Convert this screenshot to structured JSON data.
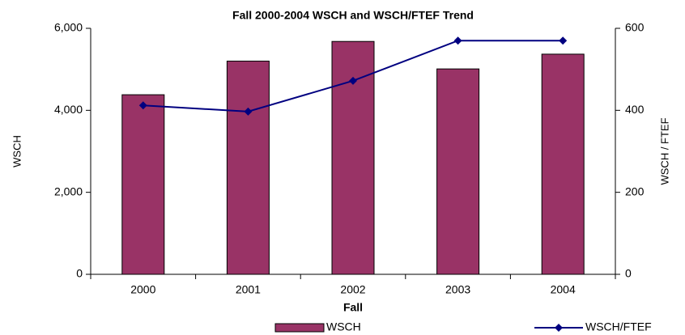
{
  "chart_data": {
    "type": "bar_line",
    "title": "Fall 2000-2004 WSCH and WSCH/FTEF Trend",
    "xlabel": "Fall",
    "ylabel": "WSCH",
    "y2label": "WSCH / FTEF",
    "categories": [
      "2000",
      "2001",
      "2002",
      "2003",
      "2004"
    ],
    "series": [
      {
        "name": "WSCH",
        "type": "bar",
        "color": "#993366",
        "values": [
          4380,
          5200,
          5680,
          5010,
          5370
        ]
      },
      {
        "name": "WSCH/FTEF",
        "type": "line",
        "color": "#000080",
        "axis": "y2",
        "values": [
          412,
          397,
          472,
          570,
          570
        ]
      }
    ],
    "ylim": [
      0,
      6000
    ],
    "yticks": [
      0,
      {
        "value": 2000,
        "label": "2,000"
      },
      {
        "value": 4000,
        "label": "4,000"
      },
      {
        "value": 6000,
        "label": "6,000"
      }
    ],
    "y2lim": [
      0,
      600
    ],
    "y2ticks": [
      0,
      200,
      400,
      600
    ]
  }
}
